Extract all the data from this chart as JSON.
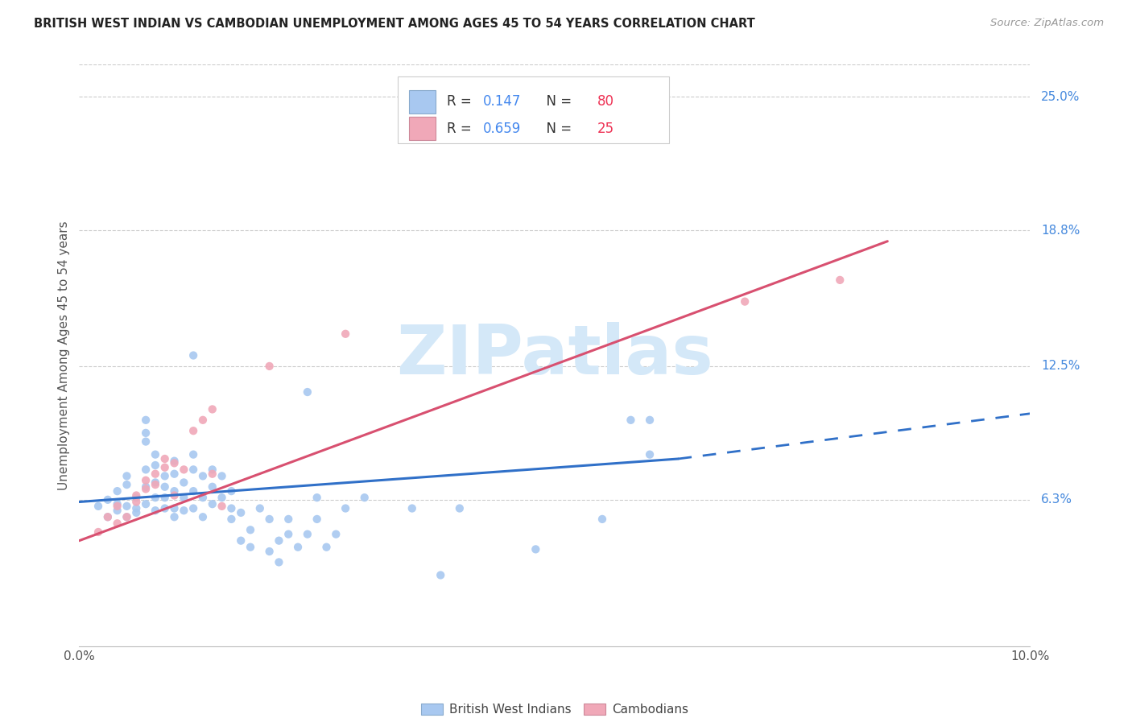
{
  "title": "BRITISH WEST INDIAN VS CAMBODIAN UNEMPLOYMENT AMONG AGES 45 TO 54 YEARS CORRELATION CHART",
  "source": "Source: ZipAtlas.com",
  "ylabel": "Unemployment Among Ages 45 to 54 years",
  "xlim": [
    0.0,
    0.1
  ],
  "ylim": [
    -0.005,
    0.265
  ],
  "ytick_labels_right": [
    "6.3%",
    "12.5%",
    "18.8%",
    "25.0%"
  ],
  "ytick_values_right": [
    0.063,
    0.125,
    0.188,
    0.25
  ],
  "legend_r_bwi": "0.147",
  "legend_n_bwi": "80",
  "legend_r_cam": "0.659",
  "legend_n_cam": "25",
  "bwi_color": "#a8c8f0",
  "cam_color": "#f0a8b8",
  "bwi_line_color": "#3070c8",
  "cam_line_color": "#d85070",
  "watermark_color": "#d4e8f8",
  "bwi_scatter": [
    [
      0.002,
      0.06
    ],
    [
      0.003,
      0.055
    ],
    [
      0.003,
      0.063
    ],
    [
      0.004,
      0.058
    ],
    [
      0.004,
      0.067
    ],
    [
      0.004,
      0.061
    ],
    [
      0.005,
      0.06
    ],
    [
      0.005,
      0.07
    ],
    [
      0.005,
      0.074
    ],
    [
      0.005,
      0.055
    ],
    [
      0.006,
      0.064
    ],
    [
      0.006,
      0.059
    ],
    [
      0.006,
      0.057
    ],
    [
      0.007,
      0.061
    ],
    [
      0.007,
      0.069
    ],
    [
      0.007,
      0.077
    ],
    [
      0.007,
      0.09
    ],
    [
      0.007,
      0.094
    ],
    [
      0.007,
      0.1
    ],
    [
      0.008,
      0.058
    ],
    [
      0.008,
      0.064
    ],
    [
      0.008,
      0.071
    ],
    [
      0.008,
      0.079
    ],
    [
      0.008,
      0.084
    ],
    [
      0.009,
      0.059
    ],
    [
      0.009,
      0.069
    ],
    [
      0.009,
      0.074
    ],
    [
      0.009,
      0.064
    ],
    [
      0.01,
      0.055
    ],
    [
      0.01,
      0.059
    ],
    [
      0.01,
      0.067
    ],
    [
      0.01,
      0.075
    ],
    [
      0.01,
      0.081
    ],
    [
      0.011,
      0.058
    ],
    [
      0.011,
      0.064
    ],
    [
      0.011,
      0.071
    ],
    [
      0.012,
      0.059
    ],
    [
      0.012,
      0.067
    ],
    [
      0.012,
      0.077
    ],
    [
      0.012,
      0.084
    ],
    [
      0.013,
      0.055
    ],
    [
      0.013,
      0.064
    ],
    [
      0.013,
      0.074
    ],
    [
      0.014,
      0.061
    ],
    [
      0.014,
      0.069
    ],
    [
      0.014,
      0.077
    ],
    [
      0.015,
      0.064
    ],
    [
      0.015,
      0.074
    ],
    [
      0.016,
      0.059
    ],
    [
      0.016,
      0.067
    ],
    [
      0.016,
      0.054
    ],
    [
      0.017,
      0.044
    ],
    [
      0.017,
      0.057
    ],
    [
      0.018,
      0.041
    ],
    [
      0.018,
      0.049
    ],
    [
      0.019,
      0.059
    ],
    [
      0.02,
      0.039
    ],
    [
      0.02,
      0.054
    ],
    [
      0.021,
      0.044
    ],
    [
      0.021,
      0.034
    ],
    [
      0.022,
      0.047
    ],
    [
      0.022,
      0.054
    ],
    [
      0.023,
      0.041
    ],
    [
      0.024,
      0.047
    ],
    [
      0.025,
      0.054
    ],
    [
      0.025,
      0.064
    ],
    [
      0.026,
      0.041
    ],
    [
      0.027,
      0.047
    ],
    [
      0.028,
      0.059
    ],
    [
      0.03,
      0.064
    ],
    [
      0.035,
      0.059
    ],
    [
      0.038,
      0.028
    ],
    [
      0.04,
      0.059
    ],
    [
      0.048,
      0.04
    ],
    [
      0.055,
      0.054
    ],
    [
      0.058,
      0.1
    ],
    [
      0.06,
      0.1
    ],
    [
      0.06,
      0.084
    ],
    [
      0.012,
      0.13
    ],
    [
      0.024,
      0.113
    ]
  ],
  "cam_scatter": [
    [
      0.002,
      0.048
    ],
    [
      0.003,
      0.055
    ],
    [
      0.004,
      0.052
    ],
    [
      0.004,
      0.06
    ],
    [
      0.005,
      0.055
    ],
    [
      0.006,
      0.062
    ],
    [
      0.006,
      0.065
    ],
    [
      0.007,
      0.068
    ],
    [
      0.007,
      0.072
    ],
    [
      0.008,
      0.075
    ],
    [
      0.008,
      0.07
    ],
    [
      0.009,
      0.078
    ],
    [
      0.009,
      0.082
    ],
    [
      0.01,
      0.065
    ],
    [
      0.01,
      0.08
    ],
    [
      0.011,
      0.077
    ],
    [
      0.012,
      0.095
    ],
    [
      0.013,
      0.1
    ],
    [
      0.014,
      0.105
    ],
    [
      0.014,
      0.075
    ],
    [
      0.015,
      0.06
    ],
    [
      0.02,
      0.125
    ],
    [
      0.028,
      0.14
    ],
    [
      0.07,
      0.155
    ],
    [
      0.08,
      0.165
    ]
  ]
}
